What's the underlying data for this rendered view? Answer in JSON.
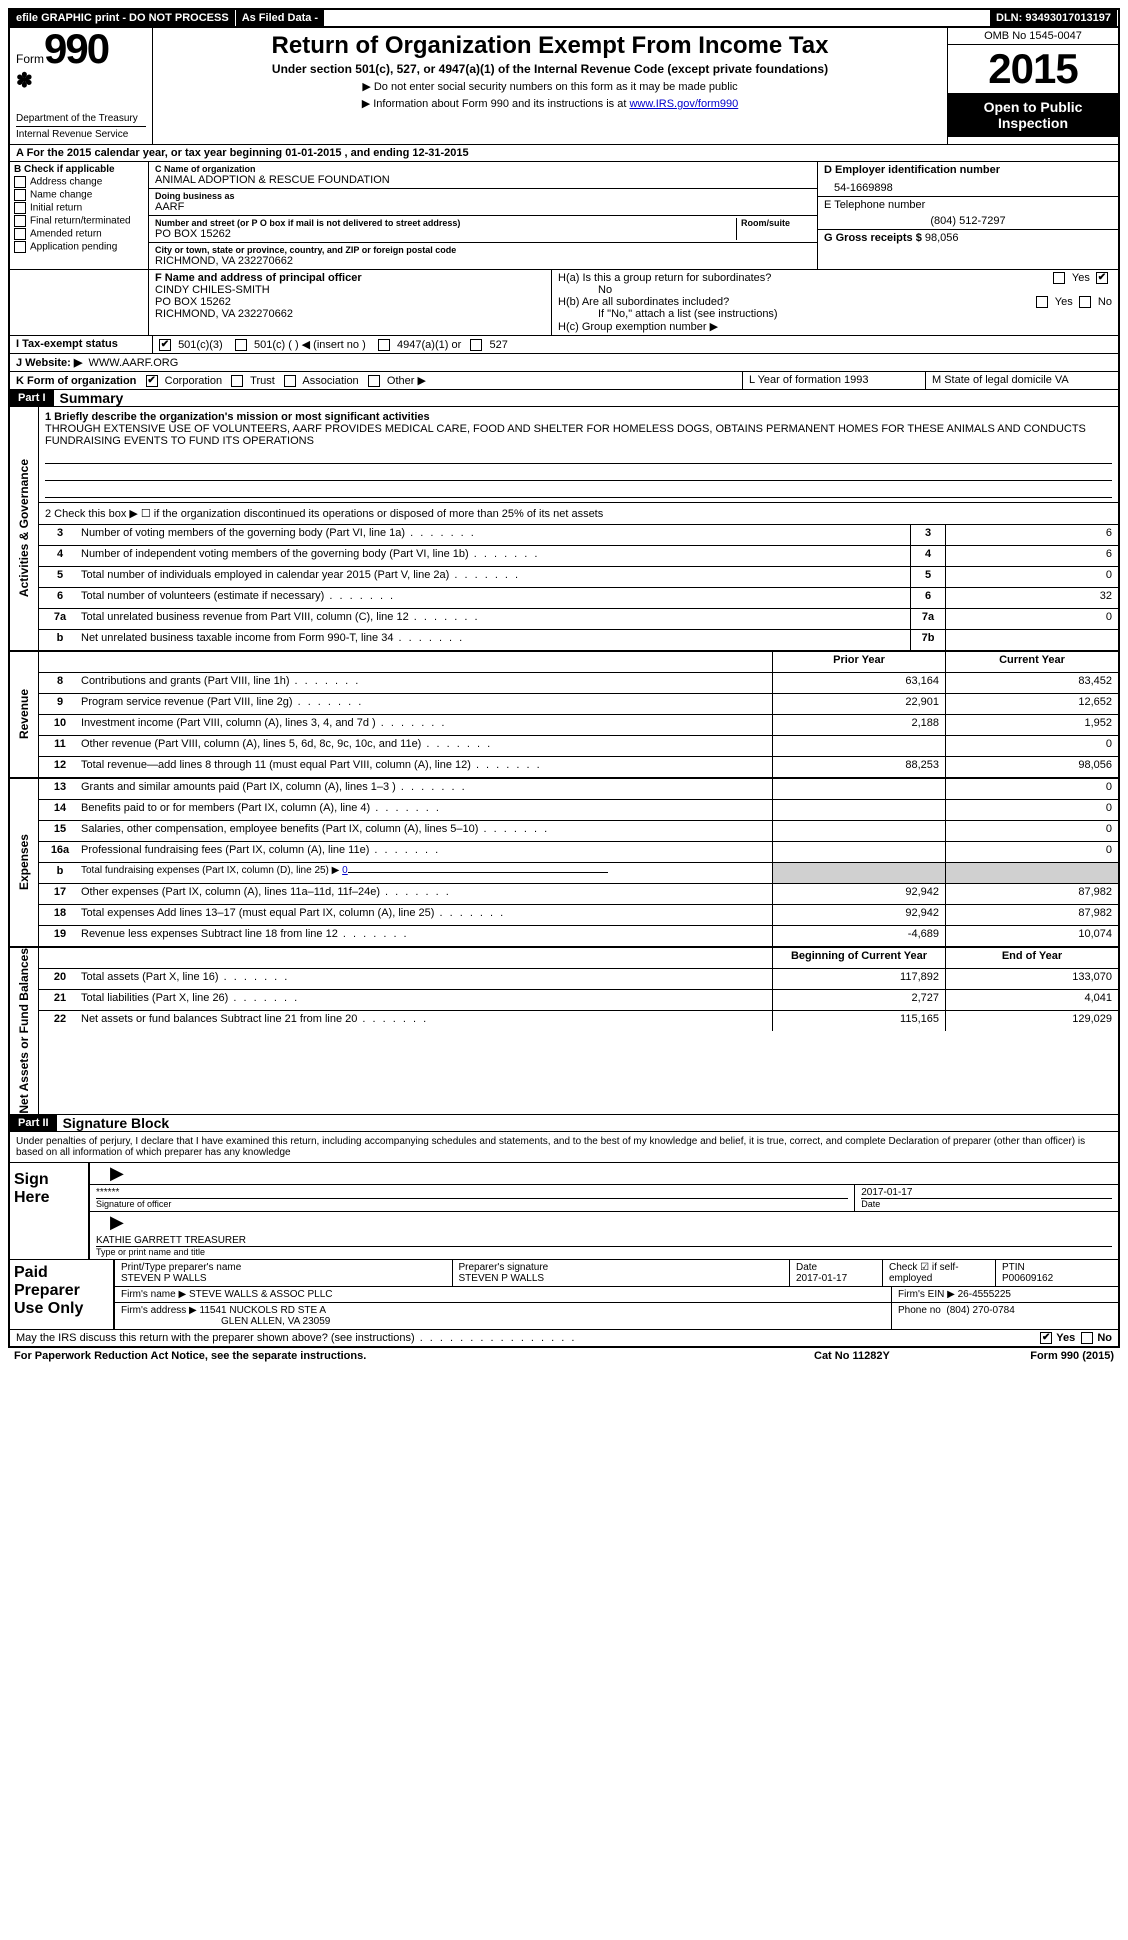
{
  "topbar": {
    "efile": "efile GRAPHIC print - DO NOT PROCESS",
    "asfiled": "As Filed Data -",
    "dln_label": "DLN:",
    "dln": "93493017013197"
  },
  "header": {
    "form_word": "Form",
    "form_num": "990",
    "dept": "Department of the Treasury",
    "irs": "Internal Revenue Service",
    "title": "Return of Organization Exempt From Income Tax",
    "subtitle": "Under section 501(c), 527, or 4947(a)(1) of the Internal Revenue Code (except private foundations)",
    "arrow1": "▶ Do not enter social security numbers on this form as it may be made public",
    "arrow2_pre": "▶ Information about Form 990 and its instructions is at ",
    "arrow2_link": "www.IRS.gov/form990",
    "omb": "OMB No 1545-0047",
    "year": "2015",
    "open": "Open to Public Inspection"
  },
  "rowA": "A  For the 2015 calendar year, or tax year beginning 01-01-2015    , and ending 12-31-2015",
  "B": {
    "header": "B Check if applicable",
    "addr_change": "Address change",
    "name_change": "Name change",
    "initial": "Initial return",
    "final": "Final return/terminated",
    "amended": "Amended return",
    "app_pending": "Application pending"
  },
  "C": {
    "label": "C Name of organization",
    "name": "ANIMAL ADOPTION & RESCUE FOUNDATION",
    "dba_label": "Doing business as",
    "dba": "AARF",
    "street_label": "Number and street (or P O box if mail is not delivered to street address)",
    "room_label": "Room/suite",
    "street": "PO BOX 15262",
    "city_label": "City or town, state or province, country, and ZIP or foreign postal code",
    "city": "RICHMOND, VA  232270662"
  },
  "D": {
    "label": "D Employer identification number",
    "ein": "54-1669898",
    "E_label": "E Telephone number",
    "phone": "(804) 512-7297",
    "G_label": "G Gross receipts $",
    "G_val": "98,056"
  },
  "F": {
    "label": "F Name and address of principal officer",
    "l1": "CINDY CHILES-SMITH",
    "l2": "PO BOX 15262",
    "l3": "RICHMOND, VA  232270662"
  },
  "H": {
    "a": "H(a)  Is this a group return for subordinates?",
    "a_ans": "No",
    "b": "H(b)  Are all subordinates included?",
    "b_note": "If \"No,\" attach a list  (see instructions)",
    "c": "H(c)  Group exemption number ▶"
  },
  "I": {
    "label": "I  Tax-exempt status",
    "o1": "501(c)(3)",
    "o2": "501(c) (  ) ◀ (insert no )",
    "o3": "4947(a)(1) or",
    "o4": "527"
  },
  "J": {
    "label": "J  Website: ▶",
    "val": "WWW.AARF.ORG"
  },
  "K": {
    "label": "K Form of organization",
    "corp": "Corporation",
    "trust": "Trust",
    "assoc": "Association",
    "other": "Other ▶",
    "L": "L Year of formation  1993",
    "M": "M State of legal domicile  VA"
  },
  "partI": {
    "header": "Part I",
    "title": "Summary"
  },
  "mission": {
    "q": "1 Briefly describe the organization's mission or most significant activities",
    "text": "THROUGH EXTENSIVE USE OF VOLUNTEERS, AARF PROVIDES MEDICAL CARE, FOOD AND SHELTER FOR HOMELESS DOGS, OBTAINS PERMANENT HOMES FOR THESE ANIMALS AND CONDUCTS FUNDRAISING EVENTS TO FUND ITS OPERATIONS"
  },
  "line2": "2  Check this box ▶ ☐ if the organization discontinued its operations or disposed of more than 25% of its net assets",
  "gov_lines": [
    {
      "n": "3",
      "d": "Number of voting members of the governing body (Part VI, line 1a)",
      "b": "3",
      "v": "6"
    },
    {
      "n": "4",
      "d": "Number of independent voting members of the governing body (Part VI, line 1b)",
      "b": "4",
      "v": "6"
    },
    {
      "n": "5",
      "d": "Total number of individuals employed in calendar year 2015 (Part V, line 2a)",
      "b": "5",
      "v": "0"
    },
    {
      "n": "6",
      "d": "Total number of volunteers (estimate if necessary)",
      "b": "6",
      "v": "32"
    },
    {
      "n": "7a",
      "d": "Total unrelated business revenue from Part VIII, column (C), line 12",
      "b": "7a",
      "v": "0"
    },
    {
      "n": "b",
      "d": "Net unrelated business taxable income from Form 990-T, line 34",
      "b": "7b",
      "v": ""
    }
  ],
  "col_hdr": {
    "prior": "Prior Year",
    "current": "Current Year"
  },
  "rev_lines": [
    {
      "n": "8",
      "d": "Contributions and grants (Part VIII, line 1h)",
      "p": "63,164",
      "c": "83,452"
    },
    {
      "n": "9",
      "d": "Program service revenue (Part VIII, line 2g)",
      "p": "22,901",
      "c": "12,652"
    },
    {
      "n": "10",
      "d": "Investment income (Part VIII, column (A), lines 3, 4, and 7d )",
      "p": "2,188",
      "c": "1,952"
    },
    {
      "n": "11",
      "d": "Other revenue (Part VIII, column (A), lines 5, 6d, 8c, 9c, 10c, and 11e)",
      "p": "",
      "c": "0"
    },
    {
      "n": "12",
      "d": "Total revenue—add lines 8 through 11 (must equal Part VIII, column (A), line 12)",
      "p": "88,253",
      "c": "98,056"
    }
  ],
  "exp_lines": [
    {
      "n": "13",
      "d": "Grants and similar amounts paid (Part IX, column (A), lines 1–3 )",
      "p": "",
      "c": "0"
    },
    {
      "n": "14",
      "d": "Benefits paid to or for members (Part IX, column (A), line 4)",
      "p": "",
      "c": "0"
    },
    {
      "n": "15",
      "d": "Salaries, other compensation, employee benefits (Part IX, column (A), lines 5–10)",
      "p": "",
      "c": "0"
    },
    {
      "n": "16a",
      "d": "Professional fundraising fees (Part IX, column (A), line 11e)",
      "p": "",
      "c": "0"
    },
    {
      "n": "b",
      "d": "Total fundraising expenses (Part IX, column (D), line 25) ▶",
      "p": "shade",
      "c": "shade",
      "extra": "0"
    },
    {
      "n": "17",
      "d": "Other expenses (Part IX, column (A), lines 11a–11d, 11f–24e)",
      "p": "92,942",
      "c": "87,982"
    },
    {
      "n": "18",
      "d": "Total expenses  Add lines 13–17 (must equal Part IX, column (A), line 25)",
      "p": "92,942",
      "c": "87,982"
    },
    {
      "n": "19",
      "d": "Revenue less expenses  Subtract line 18 from line 12",
      "p": "-4,689",
      "c": "10,074"
    }
  ],
  "na_hdr": {
    "beg": "Beginning of Current Year",
    "end": "End of Year"
  },
  "na_lines": [
    {
      "n": "20",
      "d": "Total assets (Part X, line 16)",
      "p": "117,892",
      "c": "133,070"
    },
    {
      "n": "21",
      "d": "Total liabilities (Part X, line 26)",
      "p": "2,727",
      "c": "4,041"
    },
    {
      "n": "22",
      "d": "Net assets or fund balances  Subtract line 21 from line 20",
      "p": "115,165",
      "c": "129,029"
    }
  ],
  "sides": {
    "gov": "Activities & Governance",
    "rev": "Revenue",
    "exp": "Expenses",
    "na": "Net Assets or Fund Balances"
  },
  "partII": {
    "header": "Part II",
    "title": "Signature Block"
  },
  "perjury": "Under penalties of perjury, I declare that I have examined this return, including accompanying schedules and statements, and to the best of my knowledge and belief, it is true, correct, and complete  Declaration of preparer (other than officer) is based on all information of which preparer has any knowledge",
  "sign": {
    "here": "Sign Here",
    "sig_stars": "******",
    "sig_officer_lbl": "Signature of officer",
    "date": "2017-01-17",
    "date_lbl": "Date",
    "name": "KATHIE GARRETT TREASURER",
    "name_lbl": "Type or print name and title"
  },
  "paid": {
    "left": "Paid Preparer Use Only",
    "l1c1_lbl": "Print/Type preparer's name",
    "l1c1": "STEVEN P WALLS",
    "l1c2_lbl": "Preparer's signature",
    "l1c2": "STEVEN P WALLS",
    "l1c3_lbl": "Date",
    "l1c3": "2017-01-17",
    "l1c4_lbl": "Check ☑ if self-employed",
    "l1c5_lbl": "PTIN",
    "l1c5": "P00609162",
    "l2_lbl": "Firm's name    ▶",
    "l2": "STEVE WALLS & ASSOC PLLC",
    "l2b_lbl": "Firm's EIN ▶",
    "l2b": "26-4555225",
    "l3_lbl": "Firm's address ▶",
    "l3a": "11541 NUCKOLS RD STE A",
    "l3b": "GLEN ALLEN, VA  23059",
    "l3c_lbl": "Phone no",
    "l3c": "(804) 270-0784"
  },
  "discuss": "May the IRS discuss this return with the preparer shown above? (see instructions)",
  "discuss_yes": "Yes",
  "discuss_no": "No",
  "footer": {
    "left": "For Paperwork Reduction Act Notice, see the separate instructions.",
    "mid": "Cat No 11282Y",
    "right": "Form 990 (2015)"
  }
}
